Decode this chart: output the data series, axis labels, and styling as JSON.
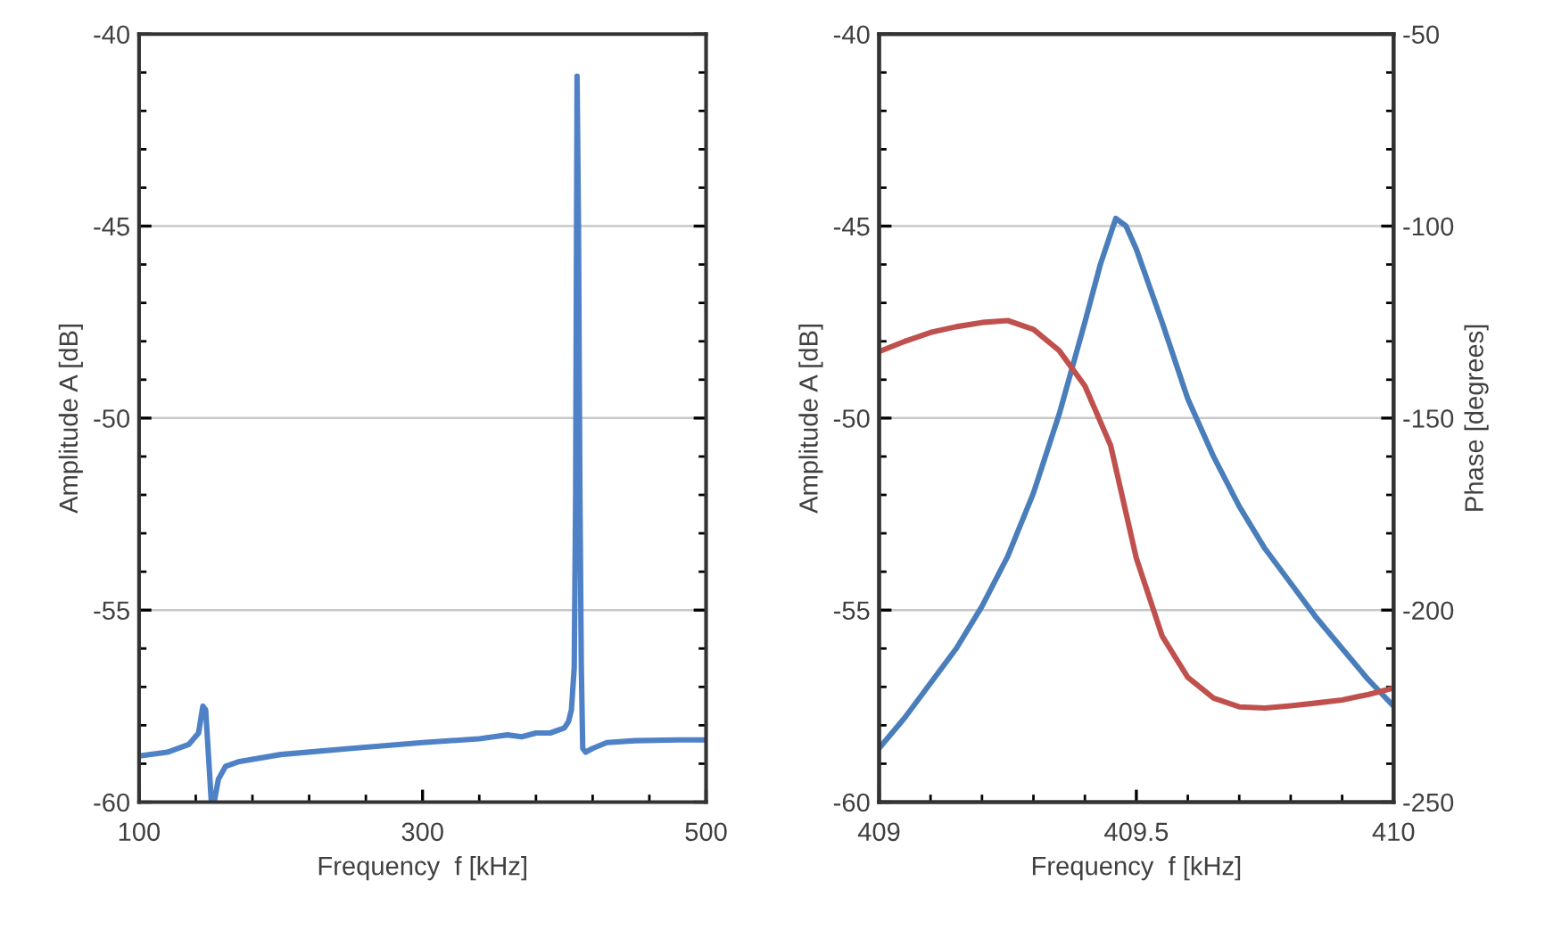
{
  "chart_data": [
    {
      "type": "line",
      "xlabel": "Frequency  f [kHz]",
      "ylabel": "Amplitude A [dB]",
      "grid": "y",
      "marker": "none",
      "line_style": "solid",
      "xlim": [
        100,
        500
      ],
      "ylim": [
        -60,
        -40
      ],
      "xticks": [
        100,
        {
          "value": 140,
          "label": null
        },
        {
          "value": 180,
          "label": null
        },
        {
          "value": 220,
          "label": null
        },
        {
          "value": 260,
          "label": null
        },
        300,
        {
          "value": 340,
          "label": null
        },
        {
          "value": 380,
          "label": null
        },
        {
          "value": 420,
          "label": null
        },
        {
          "value": 460,
          "label": null
        },
        500
      ],
      "yticks": [
        -60,
        {
          "value": -59,
          "label": null
        },
        {
          "value": -58,
          "label": null
        },
        {
          "value": -57,
          "label": null
        },
        {
          "value": -56,
          "label": null
        },
        -55,
        {
          "value": -54,
          "label": null
        },
        {
          "value": -53,
          "label": null
        },
        {
          "value": -52,
          "label": null
        },
        {
          "value": -51,
          "label": null
        },
        -50,
        {
          "value": -49,
          "label": null
        },
        {
          "value": -48,
          "label": null
        },
        {
          "value": -47,
          "label": null
        },
        {
          "value": -46,
          "label": null
        },
        -45,
        {
          "value": -44,
          "label": null
        },
        {
          "value": -43,
          "label": null
        },
        {
          "value": -42,
          "label": null
        },
        {
          "value": -41,
          "label": null
        },
        -40
      ],
      "series": [
        {
          "color": "#4f81c7",
          "x": [
            100,
            120,
            135,
            142,
            145,
            147,
            149,
            151,
            153,
            156,
            161,
            170,
            200,
            250,
            300,
            340,
            350,
            360,
            370,
            380,
            390,
            400,
            403,
            405,
            407,
            408,
            409,
            410,
            411,
            412,
            413,
            415,
            420,
            430,
            450,
            480,
            500
          ],
          "values": [
            -58.8,
            -58.7,
            -58.5,
            -58.2,
            -57.5,
            -57.6,
            -58.8,
            -60.0,
            -60.0,
            -59.4,
            -59.07,
            -58.95,
            -58.76,
            -58.6,
            -58.45,
            -58.35,
            -58.3,
            -58.25,
            -58.3,
            -58.2,
            -58.2,
            -58.07,
            -57.9,
            -57.6,
            -56.5,
            -52.0,
            -41.1,
            -45.0,
            -52.0,
            -56.5,
            -58.6,
            -58.7,
            -58.6,
            -58.45,
            -58.4,
            -58.38,
            -58.38
          ]
        }
      ]
    },
    {
      "type": "line",
      "xlabel": "Frequency  f [kHz]",
      "ylabel": "Amplitude A [dB]",
      "y2label": "Phase [degrees]",
      "grid": "y",
      "marker": "none",
      "line_style": "solid",
      "xlim": [
        409,
        410
      ],
      "ylim": [
        -60,
        -40
      ],
      "y2lim": [
        -250,
        -50
      ],
      "xticks": [
        409,
        {
          "value": 409.1,
          "label": null
        },
        {
          "value": 409.2,
          "label": null
        },
        {
          "value": 409.3,
          "label": null
        },
        {
          "value": 409.4,
          "label": null
        },
        409.5,
        {
          "value": 409.6,
          "label": null
        },
        {
          "value": 409.7,
          "label": null
        },
        {
          "value": 409.8,
          "label": null
        },
        {
          "value": 409.9,
          "label": null
        },
        410
      ],
      "yticks": [
        -60,
        {
          "value": -59,
          "label": null
        },
        {
          "value": -58,
          "label": null
        },
        {
          "value": -57,
          "label": null
        },
        {
          "value": -56,
          "label": null
        },
        -55,
        {
          "value": -54,
          "label": null
        },
        {
          "value": -53,
          "label": null
        },
        {
          "value": -52,
          "label": null
        },
        {
          "value": -51,
          "label": null
        },
        -50,
        {
          "value": -49,
          "label": null
        },
        {
          "value": -48,
          "label": null
        },
        {
          "value": -47,
          "label": null
        },
        {
          "value": -46,
          "label": null
        },
        -45,
        {
          "value": -44,
          "label": null
        },
        {
          "value": -43,
          "label": null
        },
        {
          "value": -42,
          "label": null
        },
        {
          "value": -41,
          "label": null
        },
        -40
      ],
      "y2ticks": [
        -250,
        {
          "value": -240,
          "label": null
        },
        {
          "value": -230,
          "label": null
        },
        {
          "value": -220,
          "label": null
        },
        {
          "value": -210,
          "label": null
        },
        -200,
        {
          "value": -190,
          "label": null
        },
        {
          "value": -180,
          "label": null
        },
        {
          "value": -170,
          "label": null
        },
        {
          "value": -160,
          "label": null
        },
        -150,
        {
          "value": -140,
          "label": null
        },
        {
          "value": -130,
          "label": null
        },
        {
          "value": -120,
          "label": null
        },
        {
          "value": -110,
          "label": null
        },
        -100,
        {
          "value": -90,
          "label": null
        },
        {
          "value": -80,
          "label": null
        },
        {
          "value": -70,
          "label": null
        },
        {
          "value": -60,
          "label": null
        },
        -50
      ],
      "series": [
        {
          "color": "#4a7ebb",
          "x": [
            409.0,
            409.05,
            409.1,
            409.15,
            409.2,
            409.25,
            409.3,
            409.35,
            409.4,
            409.43,
            409.46,
            409.48,
            409.5,
            409.55,
            409.6,
            409.65,
            409.7,
            409.75,
            409.8,
            409.85,
            409.9,
            409.95,
            410.0
          ],
          "values": [
            -58.6,
            -57.8,
            -56.9,
            -56.0,
            -54.9,
            -53.6,
            -51.95,
            -49.9,
            -47.5,
            -46.0,
            -44.8,
            -45.0,
            -45.6,
            -47.5,
            -49.5,
            -51.0,
            -52.3,
            -53.4,
            -54.3,
            -55.2,
            -56.0,
            -56.8,
            -57.5
          ]
        },
        {
          "color": "#c0504d",
          "axis": "y2",
          "x": [
            409.0,
            409.05,
            409.1,
            409.15,
            409.2,
            409.25,
            409.3,
            409.35,
            409.4,
            409.45,
            409.5,
            409.55,
            409.6,
            409.65,
            409.7,
            409.75,
            409.8,
            409.85,
            409.9,
            409.95,
            410.0
          ],
          "values": [
            -132.7,
            -130.0,
            -127.7,
            -126.2,
            -125.1,
            -124.6,
            -126.9,
            -132.4,
            -141.6,
            -157.1,
            -186.5,
            -206.7,
            -217.5,
            -222.9,
            -225.2,
            -225.5,
            -224.9,
            -224.2,
            -223.4,
            -222.0,
            -220.3
          ]
        }
      ]
    }
  ]
}
